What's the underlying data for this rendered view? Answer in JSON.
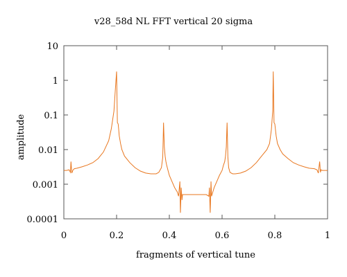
{
  "chart_data": {
    "type": "line",
    "title": "v28_58d NL FFT vertical 20 sigma",
    "xlabel": "fragments of vertical tune",
    "ylabel": "amplitude",
    "xlim": [
      0,
      1
    ],
    "ylim": [
      0.0001,
      10
    ],
    "yscale": "log",
    "x_ticks": [
      0,
      0.2,
      0.4,
      0.6,
      0.8,
      1
    ],
    "x_tick_labels": [
      "0",
      "0.2",
      "0.4",
      "0.6",
      "0.8",
      "1"
    ],
    "y_ticks": [
      0.0001,
      0.001,
      0.01,
      0.1,
      1,
      10
    ],
    "y_tick_labels": [
      "0.0001",
      "0.001",
      "0.01",
      "0.1",
      "1",
      "10"
    ],
    "grid": false,
    "series": [
      {
        "color": "#e8761e",
        "x": [
          0.0,
          0.01,
          0.02,
          0.025,
          0.027,
          0.03,
          0.035,
          0.04,
          0.05,
          0.07,
          0.09,
          0.11,
          0.13,
          0.15,
          0.17,
          0.18,
          0.19,
          0.195,
          0.2,
          0.203,
          0.206,
          0.208,
          0.21,
          0.215,
          0.22,
          0.23,
          0.25,
          0.27,
          0.29,
          0.31,
          0.33,
          0.35,
          0.36,
          0.37,
          0.375,
          0.378,
          0.381,
          0.384,
          0.387,
          0.39,
          0.395,
          0.4,
          0.41,
          0.42,
          0.43,
          0.435,
          0.44,
          0.442,
          0.445,
          0.448,
          0.45,
          0.46,
          0.48,
          0.5,
          0.52,
          0.54,
          0.55,
          0.552,
          0.555,
          0.558,
          0.56,
          0.565,
          0.57,
          0.58,
          0.59,
          0.6,
          0.605,
          0.61,
          0.613,
          0.616,
          0.619,
          0.622,
          0.625,
          0.63,
          0.64,
          0.65,
          0.67,
          0.69,
          0.71,
          0.73,
          0.75,
          0.77,
          0.78,
          0.787,
          0.792,
          0.794,
          0.797,
          0.8,
          0.805,
          0.81,
          0.82,
          0.83,
          0.85,
          0.87,
          0.89,
          0.91,
          0.93,
          0.95,
          0.96,
          0.965,
          0.97,
          0.973,
          0.975,
          0.98,
          0.99,
          1.0
        ],
        "y": [
          0.0025,
          0.0025,
          0.0026,
          0.0022,
          0.0045,
          0.0021,
          0.0026,
          0.0028,
          0.0029,
          0.0032,
          0.0036,
          0.0042,
          0.0055,
          0.0085,
          0.018,
          0.04,
          0.13,
          0.5,
          1.8,
          0.06,
          0.055,
          0.038,
          0.025,
          0.015,
          0.01,
          0.0065,
          0.0042,
          0.003,
          0.0024,
          0.0021,
          0.002,
          0.002,
          0.0022,
          0.003,
          0.006,
          0.06,
          0.012,
          0.0065,
          0.0045,
          0.0035,
          0.0025,
          0.0018,
          0.0012,
          0.0008,
          0.0006,
          0.00045,
          0.0012,
          0.00015,
          0.0008,
          0.00035,
          0.0005,
          0.0005,
          0.0005,
          0.0005,
          0.0005,
          0.0005,
          0.00045,
          0.0008,
          0.00015,
          0.0012,
          0.00045,
          0.0006,
          0.0008,
          0.0012,
          0.0018,
          0.0025,
          0.0035,
          0.0045,
          0.0065,
          0.012,
          0.06,
          0.006,
          0.003,
          0.0022,
          0.002,
          0.002,
          0.0021,
          0.0024,
          0.003,
          0.0042,
          0.0065,
          0.01,
          0.015,
          0.038,
          0.13,
          1.8,
          0.06,
          0.055,
          0.025,
          0.015,
          0.01,
          0.0075,
          0.0055,
          0.0042,
          0.0036,
          0.0032,
          0.0029,
          0.0028,
          0.0026,
          0.0021,
          0.0045,
          0.0022,
          0.0026,
          0.0025,
          0.0025,
          0.0025
        ]
      }
    ]
  }
}
